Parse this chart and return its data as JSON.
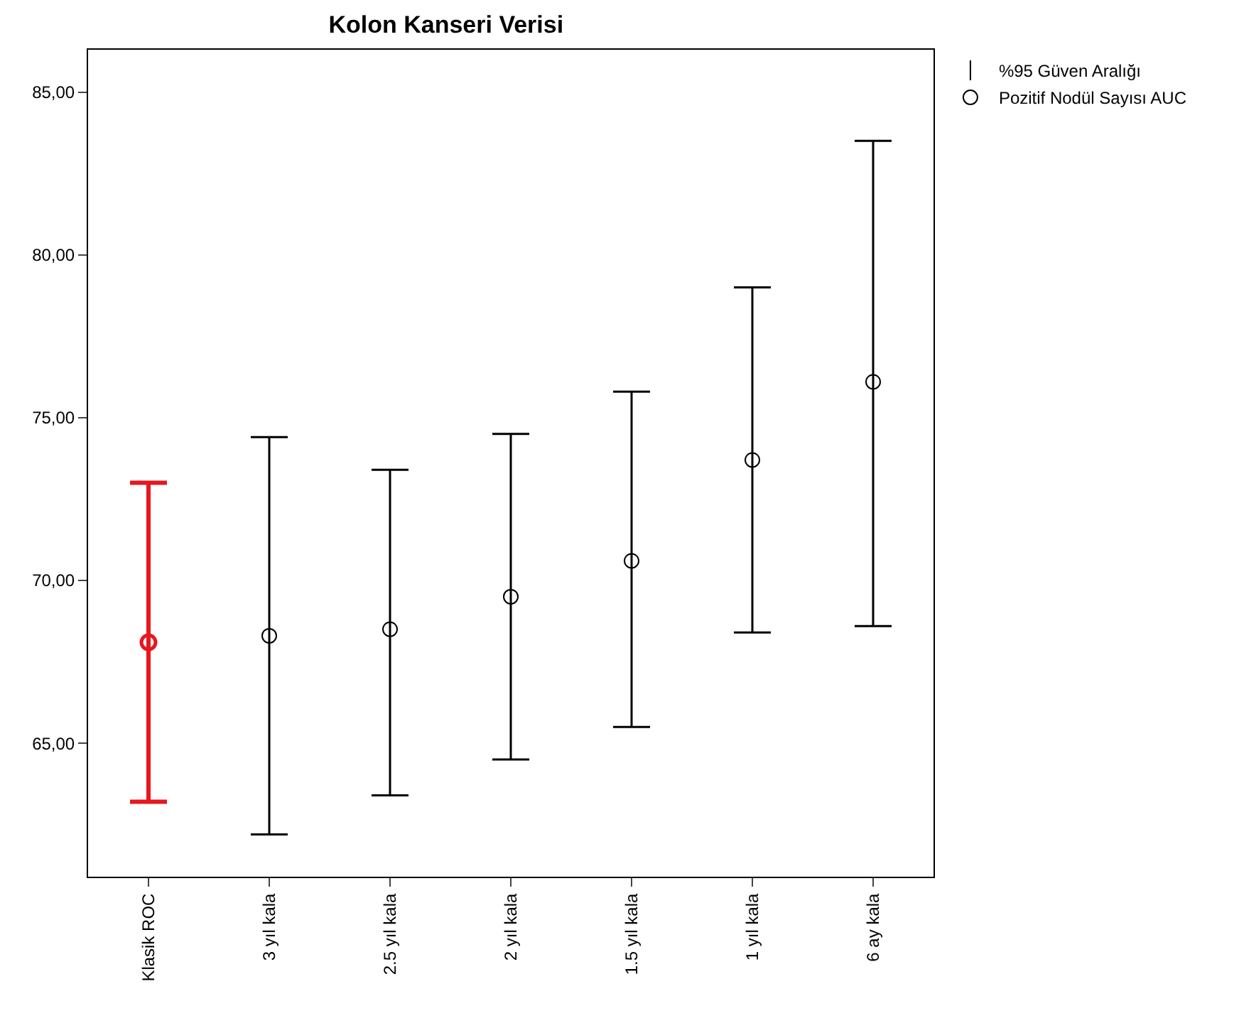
{
  "chart_data": {
    "type": "scatter",
    "title": "Kolon Kanseri Verisi",
    "categories": [
      "Klasik ROC",
      "3 yıl kala",
      "2.5 yıl kala",
      "2 yıl kala",
      "1.5 yıl kala",
      "1 yıl kala",
      "6 ay kala"
    ],
    "series": [
      {
        "name": "Pozitif Nodül Sayısı AUC",
        "colors": [
          "#e8161e",
          "#000000",
          "#000000",
          "#000000",
          "#000000",
          "#000000",
          "#000000"
        ],
        "values": [
          68.1,
          68.3,
          68.5,
          69.5,
          70.6,
          73.7,
          76.1
        ],
        "errors": [
          [
            63.2,
            73.0
          ],
          [
            62.2,
            74.4
          ],
          [
            63.4,
            73.4
          ],
          [
            64.5,
            74.5
          ],
          [
            65.5,
            75.8
          ],
          [
            68.4,
            79.0
          ],
          [
            68.6,
            83.5
          ]
        ]
      }
    ],
    "annotations": [
      "%95 Güven Aralığı"
    ],
    "ylim": [
      60.9,
      86.3
    ],
    "yticks": [
      {
        "value": 65,
        "label": "65,00"
      },
      {
        "value": 70,
        "label": "70,00"
      },
      {
        "value": 75,
        "label": "75,00"
      },
      {
        "value": 80,
        "label": "80,00"
      },
      {
        "value": 85,
        "label": "85,00"
      }
    ],
    "legend": "top right",
    "marker": "circle"
  }
}
